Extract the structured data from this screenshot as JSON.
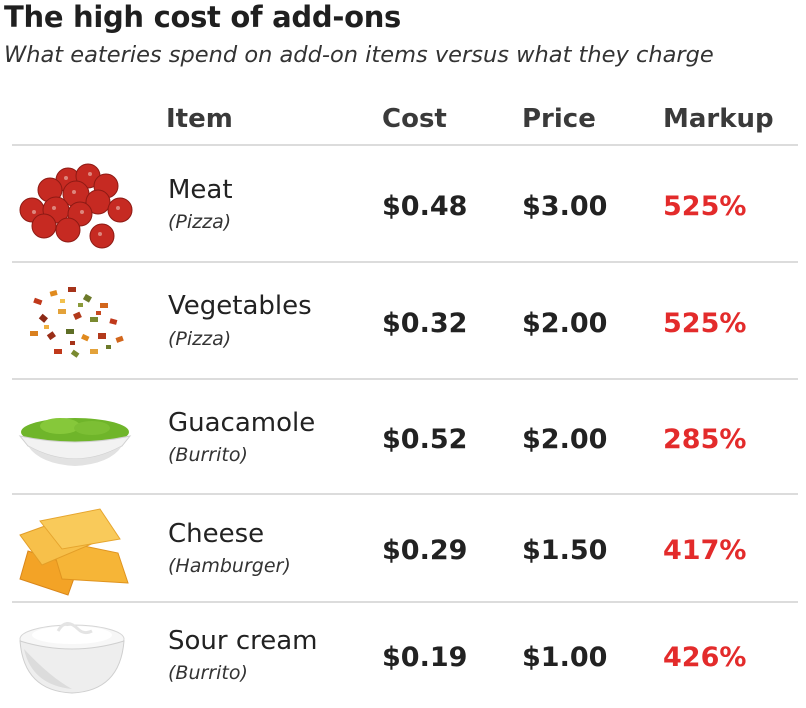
{
  "title": "The high cost of add-ons",
  "subtitle": "What eateries spend on add-on items versus what they charge",
  "accent_color": "#e32b2b",
  "columns": {
    "item": "Item",
    "cost": "Cost",
    "price": "Price",
    "markup": "Markup"
  },
  "rows": [
    {
      "name": "Meat",
      "category": "(Pizza)",
      "cost": "$0.48",
      "price": "$3.00",
      "markup": "525%",
      "icon": "pepperoni-icon"
    },
    {
      "name": "Vegetables",
      "category": "(Pizza)",
      "cost": "$0.32",
      "price": "$2.00",
      "markup": "525%",
      "icon": "vegetable-flakes-icon"
    },
    {
      "name": "Guacamole",
      "category": "(Burrito)",
      "cost": "$0.52",
      "price": "$2.00",
      "markup": "285%",
      "icon": "guacamole-bowl-icon"
    },
    {
      "name": "Cheese",
      "category": "(Hamburger)",
      "cost": "$0.29",
      "price": "$1.50",
      "markup": "417%",
      "icon": "cheese-slices-icon"
    },
    {
      "name": "Sour cream",
      "category": "(Burrito)",
      "cost": "$0.19",
      "price": "$1.00",
      "markup": "426%",
      "icon": "sour-cream-bowl-icon"
    }
  ],
  "chart_data": {
    "type": "table",
    "title": "The high cost of add-ons",
    "subtitle": "What eateries spend on add-on items versus what they charge",
    "columns": [
      "Item",
      "Cost",
      "Price",
      "Markup"
    ],
    "rows": [
      [
        "Meat (Pizza)",
        0.48,
        3.0,
        525
      ],
      [
        "Vegetables (Pizza)",
        0.32,
        2.0,
        525
      ],
      [
        "Guacamole (Burrito)",
        0.52,
        2.0,
        285
      ],
      [
        "Cheese (Hamburger)",
        0.29,
        1.5,
        417
      ],
      [
        "Sour cream (Burrito)",
        0.19,
        1.0,
        426
      ]
    ]
  }
}
